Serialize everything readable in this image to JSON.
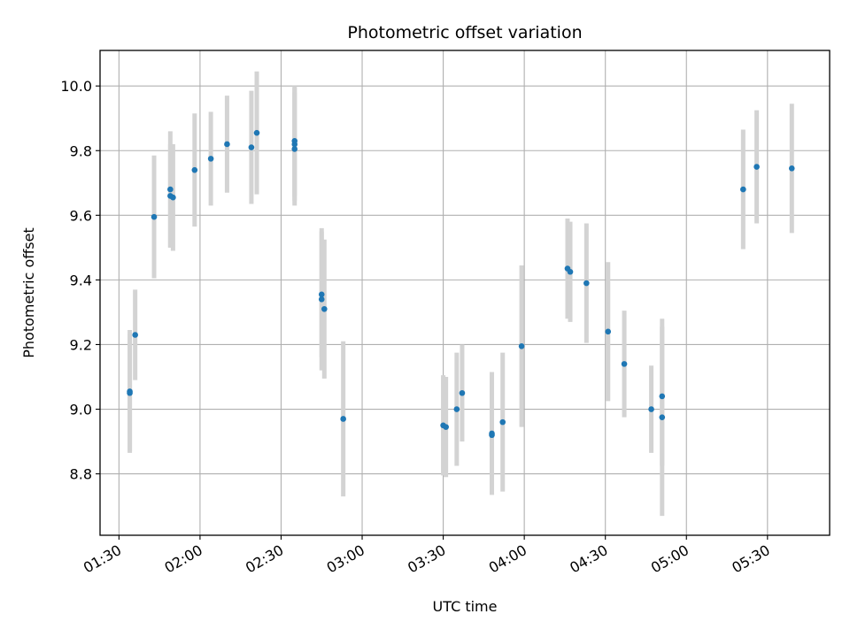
{
  "chart_data": {
    "type": "scatter",
    "title": "Photometric offset variation",
    "xlabel": "UTC time",
    "ylabel": "Photometric offset",
    "x_ticks": [
      "01:30",
      "02:00",
      "02:30",
      "03:00",
      "03:30",
      "04:00",
      "04:30",
      "05:00",
      "05:30"
    ],
    "y_ticks": [
      "8.8",
      "9.0",
      "9.2",
      "9.4",
      "9.6",
      "9.8",
      "10.0"
    ],
    "xlim": [
      "01:23",
      "05:53"
    ],
    "ylim": [
      8.61,
      10.11
    ],
    "grid": true,
    "colors": {
      "point": "#1f77b4",
      "errorbar": "#d3d3d3",
      "grid": "#b0b0b0"
    },
    "points": [
      {
        "x": "01:34",
        "y": 9.05,
        "err": 0.18
      },
      {
        "x": "01:34",
        "y": 9.055,
        "err": 0.19
      },
      {
        "x": "01:36",
        "y": 9.23,
        "err": 0.14
      },
      {
        "x": "01:43",
        "y": 9.595,
        "err": 0.19
      },
      {
        "x": "01:49",
        "y": 9.68,
        "err": 0.18
      },
      {
        "x": "01:49",
        "y": 9.66,
        "err": 0.16
      },
      {
        "x": "01:50",
        "y": 9.655,
        "err": 0.165
      },
      {
        "x": "01:58",
        "y": 9.74,
        "err": 0.175
      },
      {
        "x": "02:04",
        "y": 9.775,
        "err": 0.145
      },
      {
        "x": "02:10",
        "y": 9.82,
        "err": 0.15
      },
      {
        "x": "02:19",
        "y": 9.81,
        "err": 0.175
      },
      {
        "x": "02:21",
        "y": 9.855,
        "err": 0.19
      },
      {
        "x": "02:35",
        "y": 9.805,
        "err": 0.175
      },
      {
        "x": "02:35",
        "y": 9.82,
        "err": 0.175
      },
      {
        "x": "02:35",
        "y": 9.83,
        "err": 0.17
      },
      {
        "x": "02:45",
        "y": 9.355,
        "err": 0.195
      },
      {
        "x": "02:45",
        "y": 9.34,
        "err": 0.22
      },
      {
        "x": "02:46",
        "y": 9.31,
        "err": 0.215
      },
      {
        "x": "02:53",
        "y": 8.97,
        "err": 0.24
      },
      {
        "x": "03:30",
        "y": 8.95,
        "err": 0.155
      },
      {
        "x": "03:31",
        "y": 8.945,
        "err": 0.155
      },
      {
        "x": "03:35",
        "y": 9.0,
        "err": 0.175
      },
      {
        "x": "03:37",
        "y": 9.05,
        "err": 0.15
      },
      {
        "x": "03:48",
        "y": 8.92,
        "err": 0.18
      },
      {
        "x": "03:48",
        "y": 8.925,
        "err": 0.19
      },
      {
        "x": "03:52",
        "y": 8.96,
        "err": 0.215
      },
      {
        "x": "03:59",
        "y": 9.195,
        "err": 0.25
      },
      {
        "x": "04:16",
        "y": 9.435,
        "err": 0.155
      },
      {
        "x": "04:17",
        "y": 9.425,
        "err": 0.155
      },
      {
        "x": "04:23",
        "y": 9.39,
        "err": 0.185
      },
      {
        "x": "04:31",
        "y": 9.24,
        "err": 0.215
      },
      {
        "x": "04:37",
        "y": 9.14,
        "err": 0.165
      },
      {
        "x": "04:47",
        "y": 9.0,
        "err": 0.135
      },
      {
        "x": "04:51",
        "y": 8.975,
        "err": 0.305
      },
      {
        "x": "04:51",
        "y": 9.04,
        "err": 0.215
      },
      {
        "x": "05:21",
        "y": 9.68,
        "err": 0.185
      },
      {
        "x": "05:26",
        "y": 9.75,
        "err": 0.175
      },
      {
        "x": "05:39",
        "y": 9.745,
        "err": 0.2
      }
    ]
  }
}
